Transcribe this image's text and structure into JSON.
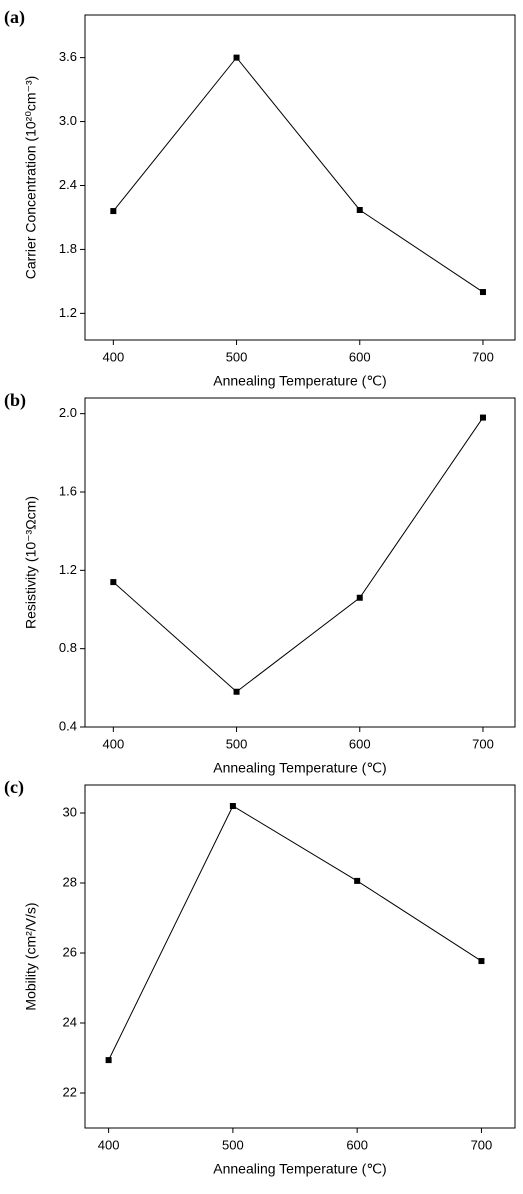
{
  "chart_data": [
    {
      "type": "line",
      "panel_label": "(a)",
      "xlabel": "Annealing Temperature (℃)",
      "ylabel": "Carrier Concentration (10²⁰cm⁻³)",
      "x": [
        400,
        500,
        600,
        700
      ],
      "series": [
        {
          "color": "#000000",
          "values": [
            2.16,
            3.6,
            2.17,
            1.4
          ]
        }
      ],
      "xlim": [
        377,
        726
      ],
      "xticks": [
        400,
        500,
        600,
        700
      ],
      "ylim": [
        0.95,
        4.0
      ],
      "yticks": [
        1.2,
        1.8,
        2.4,
        {
          "value": 3,
          "label": "3.0"
        },
        3.6
      ]
    },
    {
      "type": "line",
      "panel_label": "(b)",
      "xlabel": "Annealing Temperature (℃)",
      "ylabel": "Resistivity (10⁻³Ωcm)",
      "x": [
        400,
        500,
        600,
        700
      ],
      "series": [
        {
          "color": "#000000",
          "values": [
            1.14,
            0.58,
            1.06,
            1.98
          ]
        }
      ],
      "xlim": [
        377,
        726
      ],
      "xticks": [
        400,
        500,
        600,
        700
      ],
      "ylim": [
        0.4,
        2.08
      ],
      "yticks": [
        0.4,
        0.8,
        1.2,
        1.6,
        {
          "value": 2,
          "label": "2.0"
        }
      ]
    },
    {
      "type": "line",
      "panel_label": "(c)",
      "xlabel": "Annealing Temperature (℃)",
      "ylabel": "Mobility (cm²/V/s)",
      "x": [
        400,
        500,
        600,
        700
      ],
      "series": [
        {
          "color": "#000000",
          "values": [
            22.94,
            30.2,
            28.06,
            25.77
          ]
        }
      ],
      "xlim": [
        381,
        727
      ],
      "xticks": [
        400,
        500,
        600,
        700
      ],
      "ylim": [
        21.0,
        30.8
      ],
      "yticks": [
        22,
        24,
        26,
        28,
        30
      ]
    }
  ]
}
